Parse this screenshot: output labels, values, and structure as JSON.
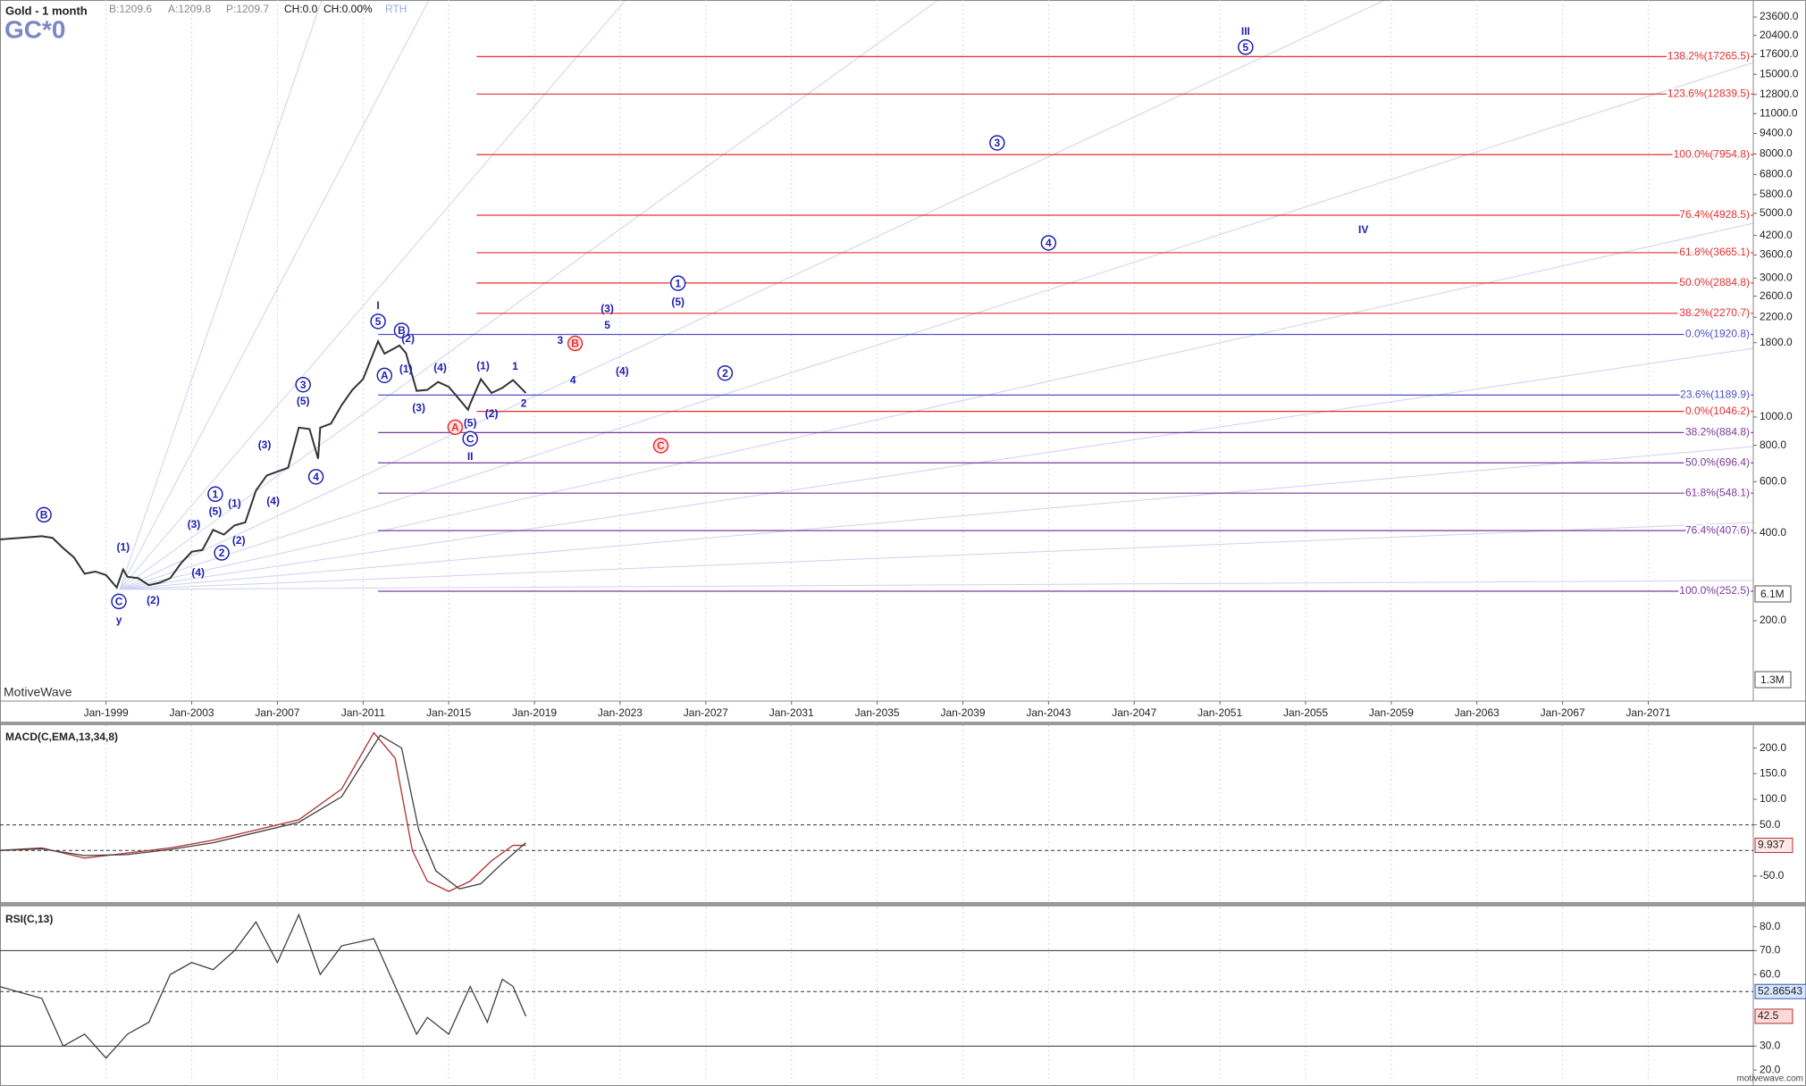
{
  "header": {
    "title": "Gold - 1 month",
    "quote_fields": [
      "B:1209.6",
      "A:1209.8",
      "P:1209.7"
    ],
    "change_fields": [
      "CH:0.0",
      "CH:0.00%"
    ],
    "session": "RTH",
    "symbol": "GC*0",
    "watermark": "MotiveWave",
    "volume_labels": [
      "6.1M",
      "1.3M"
    ],
    "footer": "motivewave.com"
  },
  "chart_data": [
    {
      "type": "line",
      "log_scale": true,
      "xlim": [
        1994.05,
        2075.9
      ],
      "xticks": [
        {
          "value": 1999,
          "label": "Jan-1999"
        },
        {
          "value": 2003,
          "label": "Jan-2003"
        },
        {
          "value": 2007,
          "label": "Jan-2007"
        },
        {
          "value": 2011,
          "label": "Jan-2011"
        },
        {
          "value": 2015,
          "label": "Jan-2015"
        },
        {
          "value": 2019,
          "label": "Jan-2019"
        },
        {
          "value": 2023,
          "label": "Jan-2023"
        },
        {
          "value": 2027,
          "label": "Jan-2027"
        },
        {
          "value": 2031,
          "label": "Jan-2031"
        },
        {
          "value": 2035,
          "label": "Jan-2035"
        },
        {
          "value": 2039,
          "label": "Jan-2039"
        },
        {
          "value": 2043,
          "label": "Jan-2043"
        },
        {
          "value": 2047,
          "label": "Jan-2047"
        },
        {
          "value": 2051,
          "label": "Jan-2051"
        },
        {
          "value": 2055,
          "label": "Jan-2055"
        },
        {
          "value": 2059,
          "label": "Jan-2059"
        },
        {
          "value": 2063,
          "label": "Jan-2063"
        },
        {
          "value": 2067,
          "label": "Jan-2067"
        },
        {
          "value": 2071,
          "label": "Jan-2071"
        }
      ],
      "ylim": [
        106,
        27000
      ],
      "yticks": [
        {
          "value": 23600,
          "label": "23600.0"
        },
        {
          "value": 20400,
          "label": "20400.0"
        },
        {
          "value": 17600,
          "label": "17600.0"
        },
        {
          "value": 15000,
          "label": "15000.0"
        },
        {
          "value": 12800,
          "label": "12800.0"
        },
        {
          "value": 11000,
          "label": "11000.0"
        },
        {
          "value": 9400,
          "label": "9400.0"
        },
        {
          "value": 8000,
          "label": "8000.0"
        },
        {
          "value": 6800,
          "label": "6800.0"
        },
        {
          "value": 5800,
          "label": "5800.0"
        },
        {
          "value": 5000,
          "label": "5000.0"
        },
        {
          "value": 4200,
          "label": "4200.0"
        },
        {
          "value": 3600,
          "label": "3600.0"
        },
        {
          "value": 3000,
          "label": "3000.0"
        },
        {
          "value": 2600,
          "label": "2600.0"
        },
        {
          "value": 2200,
          "label": "2200.0"
        },
        {
          "value": 1800,
          "label": "1800.0"
        },
        {
          "value": 1000,
          "label": "1000.0"
        },
        {
          "value": 800,
          "label": "800.0"
        },
        {
          "value": 600,
          "label": "600.0"
        },
        {
          "value": 400,
          "label": "400.0"
        },
        {
          "value": 200,
          "label": "200.0"
        }
      ],
      "series": [
        {
          "name": "Gold",
          "color": "#333333",
          "x": [
            1994.0,
            1995,
            1996,
            1996.5,
            1997,
            1997.5,
            1998,
            1998.5,
            1999,
            1999.5,
            1999.8,
            2000,
            2000.5,
            2001,
            2001.5,
            2002,
            2002.5,
            2003,
            2003.5,
            2004,
            2004.5,
            2005,
            2005.5,
            2006,
            2006.5,
            2007,
            2007.5,
            2008,
            2008.5,
            2008.9,
            2009,
            2009.5,
            2010,
            2010.5,
            2011,
            2011.7,
            2012,
            2012.7,
            2013,
            2013.5,
            2014,
            2014.5,
            2015,
            2015.9,
            2016,
            2016.5,
            2017,
            2017.5,
            2018,
            2018.6
          ],
          "values": [
            380,
            385,
            390,
            385,
            355,
            330,
            290,
            295,
            287,
            260,
            300,
            283,
            280,
            265,
            270,
            280,
            315,
            345,
            350,
            410,
            395,
            425,
            435,
            560,
            630,
            650,
            670,
            920,
            910,
            720,
            920,
            950,
            1100,
            1240,
            1350,
            1820,
            1650,
            1760,
            1660,
            1230,
            1240,
            1320,
            1270,
            1060,
            1110,
            1350,
            1210,
            1260,
            1340,
            1209.6
          ]
        }
      ],
      "levels": [
        {
          "value": 17265.5,
          "label": "138.2%(17265.5)",
          "color": "#e03030",
          "from": 2016.3
        },
        {
          "value": 12839.5,
          "label": "123.6%(12839.5)",
          "color": "#e03030",
          "from": 2016.3
        },
        {
          "value": 7954.8,
          "label": "100.0%(7954.8)",
          "color": "#e03030",
          "from": 2016.3
        },
        {
          "value": 4928.5,
          "label": "76.4%(4928.5)",
          "color": "#e03030",
          "from": 2016.3
        },
        {
          "value": 3665.1,
          "label": "61.8%(3665.1)",
          "color": "#e03030",
          "from": 2016.3
        },
        {
          "value": 2884.8,
          "label": "50.0%(2884.8)",
          "color": "#e03030",
          "from": 2016.3
        },
        {
          "value": 2270.7,
          "label": "38.2%(2270.7)",
          "color": "#e03030",
          "from": 2016.3
        },
        {
          "value": 1920.8,
          "label": "0.0%(1920.8)",
          "color": "#5050c8",
          "from": 2011.7
        },
        {
          "value": 1189.9,
          "label": "23.6%(1189.9)",
          "color": "#5050c8",
          "from": 2011.7
        },
        {
          "value": 1046.2,
          "label": "0.0%(1046.2)",
          "color": "#e03030",
          "from": 2016.3
        },
        {
          "value": 884.8,
          "label": "38.2%(884.8)",
          "color": "#7a3a9a",
          "from": 2011.7
        },
        {
          "value": 696.4,
          "label": "50.0%(696.4)",
          "color": "#7a3a9a",
          "from": 2011.7
        },
        {
          "value": 548.1,
          "label": "61.8%(548.1)",
          "color": "#7a3a9a",
          "from": 2011.7
        },
        {
          "value": 407.6,
          "label": "76.4%(407.6)",
          "color": "#7a3a9a",
          "from": 2011.7
        },
        {
          "value": 252.5,
          "label": "100.0%(252.5)",
          "color": "#7a3a9a",
          "from": 2011.7
        }
      ],
      "wave_labels": [
        {
          "text": "III",
          "x": 2052.2,
          "y": 21100,
          "circled": false,
          "color": "#2020b0"
        },
        {
          "text": "5",
          "x": 2052.2,
          "y": 18600,
          "circled": true,
          "color": "#2020b0"
        },
        {
          "text": "3",
          "x": 2040.6,
          "y": 8730,
          "circled": true,
          "color": "#2020b0"
        },
        {
          "text": "4",
          "x": 2043.0,
          "y": 3960,
          "circled": true,
          "color": "#2020b0"
        },
        {
          "text": "IV",
          "x": 2057.7,
          "y": 4410,
          "circled": false,
          "color": "#2020b0"
        },
        {
          "text": "1",
          "x": 2025.7,
          "y": 2880,
          "circled": true,
          "color": "#2020b0"
        },
        {
          "text": "(5)",
          "x": 2025.7,
          "y": 2490,
          "circled": false,
          "color": "#2020b0"
        },
        {
          "text": "(3)",
          "x": 2022.4,
          "y": 2360,
          "circled": false,
          "color": "#2020b0"
        },
        {
          "text": "5",
          "x": 2022.4,
          "y": 2070,
          "circled": false,
          "color": "#2020b0"
        },
        {
          "text": "3",
          "x": 2020.2,
          "y": 1840,
          "circled": false,
          "color": "#2020b0"
        },
        {
          "text": "B",
          "x": 2020.9,
          "y": 1790,
          "circled": true,
          "color": "#e03030"
        },
        {
          "text": "4",
          "x": 2020.8,
          "y": 1340,
          "circled": false,
          "color": "#2020b0"
        },
        {
          "text": "(4)",
          "x": 2023.1,
          "y": 1440,
          "circled": false,
          "color": "#2020b0"
        },
        {
          "text": "2",
          "x": 2027.9,
          "y": 1416,
          "circled": true,
          "color": "#2020b0"
        },
        {
          "text": "C",
          "x": 2024.9,
          "y": 798,
          "circled": true,
          "color": "#e03030"
        },
        {
          "text": "1",
          "x": 2018.1,
          "y": 1496,
          "circled": false,
          "color": "#2020b0"
        },
        {
          "text": "2",
          "x": 2018.5,
          "y": 1117,
          "circled": false,
          "color": "#2020b0"
        },
        {
          "text": "(1)",
          "x": 2016.6,
          "y": 1500,
          "circled": false,
          "color": "#2020b0"
        },
        {
          "text": "(2)",
          "x": 2017.0,
          "y": 1029,
          "circled": false,
          "color": "#2020b0"
        },
        {
          "text": "(5)",
          "x": 2016.0,
          "y": 957,
          "circled": false,
          "color": "#2020b0"
        },
        {
          "text": "C",
          "x": 2016.0,
          "y": 843,
          "circled": true,
          "color": "#2020b0"
        },
        {
          "text": "II",
          "x": 2016.0,
          "y": 735,
          "circled": false,
          "color": "#2020b0"
        },
        {
          "text": "A",
          "x": 2015.3,
          "y": 923,
          "circled": true,
          "color": "#e03030"
        },
        {
          "text": "(4)",
          "x": 2014.6,
          "y": 1482,
          "circled": false,
          "color": "#2020b0"
        },
        {
          "text": "(3)",
          "x": 2013.6,
          "y": 1077,
          "circled": false,
          "color": "#2020b0"
        },
        {
          "text": "(1)",
          "x": 2013.0,
          "y": 1468,
          "circled": false,
          "color": "#2020b0"
        },
        {
          "text": "B",
          "x": 2012.8,
          "y": 1983,
          "circled": true,
          "color": "#2020b0"
        },
        {
          "text": "(2)",
          "x": 2013.1,
          "y": 1860,
          "circled": false,
          "color": "#2020b0"
        },
        {
          "text": "A",
          "x": 2012.0,
          "y": 1390,
          "circled": true,
          "color": "#2020b0"
        },
        {
          "text": "I",
          "x": 2011.7,
          "y": 2420,
          "circled": false,
          "color": "#2020b0"
        },
        {
          "text": "5",
          "x": 2011.7,
          "y": 2130,
          "circled": true,
          "color": "#2020b0"
        },
        {
          "text": "3",
          "x": 2008.2,
          "y": 1292,
          "circled": true,
          "color": "#2020b0"
        },
        {
          "text": "(5)",
          "x": 2008.2,
          "y": 1137,
          "circled": false,
          "color": "#2020b0"
        },
        {
          "text": "(3)",
          "x": 2006.4,
          "y": 805,
          "circled": false,
          "color": "#2020b0"
        },
        {
          "text": "4",
          "x": 2008.8,
          "y": 624,
          "circled": true,
          "color": "#2020b0"
        },
        {
          "text": "(4)",
          "x": 2006.8,
          "y": 515,
          "circled": false,
          "color": "#2020b0"
        },
        {
          "text": "1",
          "x": 2004.1,
          "y": 544,
          "circled": true,
          "color": "#2020b0"
        },
        {
          "text": "(5)",
          "x": 2004.1,
          "y": 475,
          "circled": false,
          "color": "#2020b0"
        },
        {
          "text": "(1)",
          "x": 2005.0,
          "y": 506,
          "circled": false,
          "color": "#2020b0"
        },
        {
          "text": "(3)",
          "x": 2003.1,
          "y": 430,
          "circled": false,
          "color": "#2020b0"
        },
        {
          "text": "(2)",
          "x": 2005.2,
          "y": 378,
          "circled": false,
          "color": "#2020b0"
        },
        {
          "text": "2",
          "x": 2004.4,
          "y": 342,
          "circled": true,
          "color": "#2020b0"
        },
        {
          "text": "(4)",
          "x": 2003.3,
          "y": 293,
          "circled": false,
          "color": "#2020b0"
        },
        {
          "text": "(1)",
          "x": 1999.8,
          "y": 358,
          "circled": false,
          "color": "#2020b0"
        },
        {
          "text": "(2)",
          "x": 2001.2,
          "y": 236,
          "circled": false,
          "color": "#2020b0"
        },
        {
          "text": "C",
          "x": 1999.6,
          "y": 233,
          "circled": true,
          "color": "#2020b0"
        },
        {
          "text": "y",
          "x": 1999.6,
          "y": 202,
          "circled": false,
          "color": "#2020b0"
        },
        {
          "text": "B",
          "x": 1996.1,
          "y": 462,
          "circled": true,
          "color": "#2020b0"
        }
      ]
    },
    {
      "type": "line",
      "title": "MACD(C,EMA,13,34,8)",
      "log_scale": false,
      "xlim": [
        1994.05,
        2075.9
      ],
      "ylim": [
        -99,
        244.7
      ],
      "yticks": [
        {
          "value": 200,
          "label": "200.0"
        },
        {
          "value": 150,
          "label": "150.0"
        },
        {
          "value": 100,
          "label": "100.0"
        },
        {
          "value": 50,
          "label": "50.0"
        },
        {
          "value": -50,
          "label": "-50.0"
        }
      ],
      "levels": [
        50,
        0
      ],
      "last_value": 9.937,
      "series": [
        {
          "name": "MACD",
          "color": "#b03030",
          "x": [
            1994,
            1996,
            1998,
            2000,
            2002,
            2004,
            2006,
            2008,
            2010,
            2011.5,
            2012.5,
            2013.3,
            2014,
            2015,
            2016,
            2017,
            2018,
            2018.6
          ],
          "values": [
            0,
            5,
            -15,
            -5,
            5,
            20,
            40,
            60,
            120,
            230,
            180,
            0,
            -60,
            -80,
            -60,
            -20,
            10,
            9.937
          ]
        },
        {
          "name": "Signal",
          "color": "#404040",
          "x": [
            1994,
            1996,
            1998,
            2000,
            2002,
            2004,
            2006,
            2008,
            2010,
            2011.8,
            2012.8,
            2013.6,
            2014.4,
            2015.5,
            2016.5,
            2017.5,
            2018.6
          ],
          "values": [
            0,
            3,
            -10,
            -8,
            2,
            15,
            35,
            55,
            105,
            225,
            200,
            40,
            -40,
            -75,
            -65,
            -25,
            15
          ]
        }
      ]
    },
    {
      "type": "line",
      "title": "RSI(C,13)",
      "log_scale": false,
      "xlim": [
        1994.05,
        2075.9
      ],
      "ylim": [
        14.8,
        88.1
      ],
      "yticks": [
        {
          "value": 80,
          "label": "80.0"
        },
        {
          "value": 70,
          "label": "70.0"
        },
        {
          "value": 60,
          "label": "60.0"
        },
        {
          "value": 30,
          "label": "30.0"
        },
        {
          "value": 20,
          "label": "20.0"
        }
      ],
      "levels": [
        70,
        30
      ],
      "reference_value": 52.86543,
      "last_value": 42.5,
      "series": [
        {
          "name": "RSI",
          "color": "#404040",
          "x": [
            1994,
            1996,
            1997,
            1998,
            1999,
            2000,
            2001,
            2002,
            2003,
            2004,
            2005,
            2006,
            2007,
            2008,
            2009,
            2010,
            2011.5,
            2012.5,
            2013.5,
            2014,
            2015,
            2016,
            2016.8,
            2017.5,
            2018,
            2018.6
          ],
          "values": [
            55,
            50,
            30,
            35,
            25,
            35,
            40,
            60,
            65,
            62,
            70,
            82,
            65,
            85,
            60,
            72,
            75,
            55,
            35,
            42,
            35,
            55,
            40,
            58,
            55,
            42.5
          ]
        }
      ]
    }
  ]
}
